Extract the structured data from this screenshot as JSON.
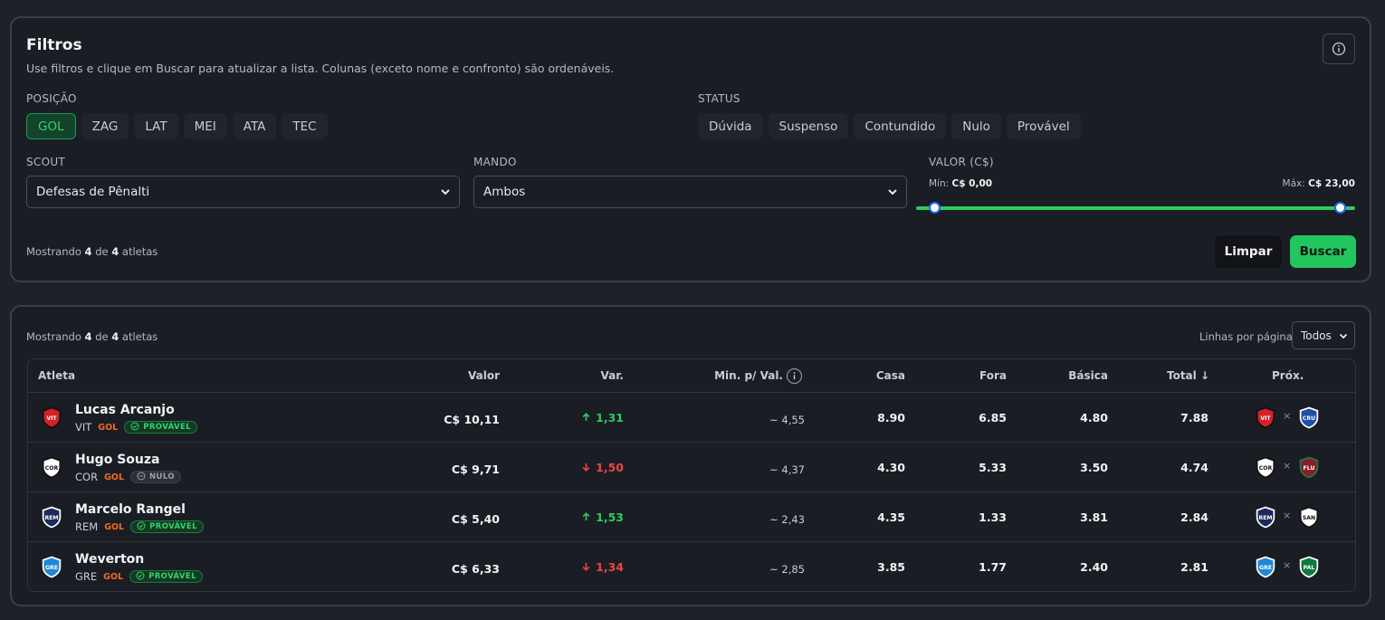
{
  "filters": {
    "title": "Filtros",
    "subtitle": "Use filtros e clique em Buscar para atualizar a lista. Colunas (exceto nome e confronto) são ordenáveis.",
    "position_label": "POSIÇÃO",
    "positions": [
      "GOL",
      "ZAG",
      "LAT",
      "MEI",
      "ATA",
      "TEC"
    ],
    "active_position": "GOL",
    "status_label": "STATUS",
    "statuses": [
      "Dúvida",
      "Suspenso",
      "Contundido",
      "Nulo",
      "Provável"
    ],
    "scout_label": "SCOUT",
    "scout_value": "Defesas de Pênalti",
    "mando_label": "MANDO",
    "mando_value": "Ambos",
    "valor_label": "VALOR (C$)",
    "min_prefix": "Mín:",
    "min_value": "C$ 0,00",
    "max_prefix": "Máx:",
    "max_value": "C$ 23,00",
    "showing": {
      "prefix": "Mostrando",
      "shown": "4",
      "de": "de",
      "total": "4",
      "suffix": "atletas"
    },
    "clear_label": "Limpar",
    "search_label": "Buscar"
  },
  "table_card": {
    "showing": {
      "prefix": "Mostrando",
      "shown": "4",
      "de": "de",
      "total": "4",
      "suffix": "atletas"
    },
    "rows_per_page_label": "Linhas por página",
    "rows_per_page_value": "Todos"
  },
  "table": {
    "headers": {
      "atleta": "Atleta",
      "valor": "Valor",
      "var": "Var.",
      "min": "Min. p/ Val.",
      "casa": "Casa",
      "fora": "Fora",
      "basica": "Básica",
      "total": "Total ↓",
      "prox": "Próx."
    },
    "x_mark": "×",
    "rows": [
      {
        "name": "Lucas Arcanjo",
        "club": "VIT",
        "pos": "GOL",
        "status": "PROVÁVEL",
        "status_type": "ok",
        "valor": "C$ 10,11",
        "var": "1,31",
        "var_dir": "up",
        "min": "~ 4,55",
        "casa": "8.90",
        "fora": "6.85",
        "basica": "4.80",
        "total": "7.88",
        "crest": {
          "abbr": "VIT",
          "color": "#d61f26",
          "accent": "#111111"
        },
        "next": {
          "home": {
            "abbr": "VIT",
            "color": "#d61f26",
            "accent": "#111111"
          },
          "away": {
            "abbr": "CRU",
            "color": "#1f4fa8",
            "accent": "#ffffff"
          }
        }
      },
      {
        "name": "Hugo Souza",
        "club": "COR",
        "pos": "GOL",
        "status": "NULO",
        "status_type": "null",
        "valor": "C$ 9,71",
        "var": "1,50",
        "var_dir": "down",
        "min": "~ 4,37",
        "casa": "4.30",
        "fora": "5.33",
        "basica": "3.50",
        "total": "4.74",
        "crest": {
          "abbr": "COR",
          "color": "#ffffff",
          "accent": "#111111"
        },
        "next": {
          "home": {
            "abbr": "COR",
            "color": "#ffffff",
            "accent": "#111111"
          },
          "away": {
            "abbr": "FLU",
            "color": "#8a1c2c",
            "accent": "#1f7a3a"
          }
        }
      },
      {
        "name": "Marcelo Rangel",
        "club": "REM",
        "pos": "GOL",
        "status": "PROVÁVEL",
        "status_type": "ok",
        "valor": "C$ 5,40",
        "var": "1,53",
        "var_dir": "up",
        "min": "~ 2,43",
        "casa": "4.35",
        "fora": "1.33",
        "basica": "3.81",
        "total": "2.84",
        "crest": {
          "abbr": "REM",
          "color": "#1c2a5e",
          "accent": "#ffffff"
        },
        "next": {
          "home": {
            "abbr": "REM",
            "color": "#1c2a5e",
            "accent": "#ffffff"
          },
          "away": {
            "abbr": "SAN",
            "color": "#ffffff",
            "accent": "#111111"
          }
        }
      },
      {
        "name": "Weverton",
        "club": "GRE",
        "pos": "GOL",
        "status": "PROVÁVEL",
        "status_type": "ok",
        "valor": "C$ 6,33",
        "var": "1,34",
        "var_dir": "down",
        "min": "~ 2,85",
        "casa": "3.85",
        "fora": "1.77",
        "basica": "2.40",
        "total": "2.81",
        "crest": {
          "abbr": "GRE",
          "color": "#1e88d6",
          "accent": "#ffffff"
        },
        "next": {
          "home": {
            "abbr": "GRE",
            "color": "#1e88d6",
            "accent": "#ffffff"
          },
          "away": {
            "abbr": "PAL",
            "color": "#0f7a3e",
            "accent": "#ffffff"
          }
        }
      }
    ]
  },
  "icons": {
    "info": "info-icon",
    "chevron": "chevron-down-icon",
    "arrow_up": "arrow-up-icon",
    "arrow_down": "arrow-down-icon",
    "check": "check-circle-icon",
    "minus": "minus-circle-icon"
  }
}
